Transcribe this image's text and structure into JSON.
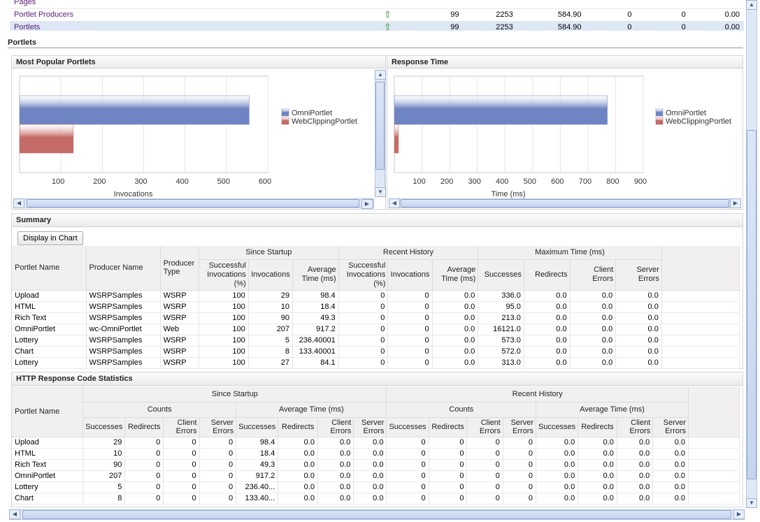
{
  "top_table": {
    "rows": [
      {
        "name": "Pages",
        "status": "",
        "c1": "",
        "c2": "",
        "c3": "",
        "c4": "",
        "c5": "",
        "c6": ""
      },
      {
        "name": "Portlet Producers",
        "status": "up-arrow-icon",
        "c1": "99",
        "c2": "2253",
        "c3": "584.90",
        "c4": "0",
        "c5": "0",
        "c6": "0.00"
      },
      {
        "name": "Portlets",
        "status": "up-arrow-icon",
        "c1": "99",
        "c2": "2253",
        "c3": "584.90",
        "c4": "0",
        "c5": "0",
        "c6": "0.00"
      }
    ]
  },
  "portlets_section": {
    "title": "Portlets"
  },
  "popular_chart": {
    "title": "Most Popular Portlets"
  },
  "response_chart": {
    "title": "Response Time"
  },
  "chart_data": [
    {
      "type": "bar",
      "orientation": "horizontal",
      "title": "Most Popular Portlets",
      "xlabel": "Invocations",
      "xlim": [
        0,
        600
      ],
      "xticks": [
        "100",
        "200",
        "300",
        "400",
        "500",
        "600"
      ],
      "series": [
        {
          "name": "OmniPortlet",
          "values": [
            555
          ],
          "color": "#6f84c2"
        },
        {
          "name": "WebClippingPortlet",
          "values": [
            130
          ],
          "color": "#c46b68"
        }
      ],
      "legend": "right"
    },
    {
      "type": "bar",
      "orientation": "horizontal",
      "title": "Response Time",
      "xlabel": "Time (ms)",
      "xlim": [
        0,
        900
      ],
      "xticks": [
        "100",
        "200",
        "300",
        "400",
        "500",
        "600",
        "700",
        "800",
        "900"
      ],
      "series": [
        {
          "name": "OmniPortlet",
          "values": [
            770
          ],
          "color": "#6f84c2"
        },
        {
          "name": "WebClippingPortlet",
          "values": [
            15
          ],
          "color": "#c46b68"
        }
      ],
      "legend": "right"
    }
  ],
  "summary": {
    "title": "Summary",
    "display_chart_button": "Display in Chart",
    "group_headers": {
      "since_startup": "Since Startup",
      "recent_history": "Recent History",
      "maximum_time": "Maximum Time (ms)"
    },
    "columns": {
      "portlet_name": "Portlet Name",
      "producer_name": "Producer Name",
      "producer_type": "Producer Type",
      "ss_success": "Successful Invocations (%)",
      "ss_invocations": "Invocations",
      "ss_avg": "Average Time (ms)",
      "rh_success": "Successful Invocations (%)",
      "rh_invocations": "Invocations",
      "rh_avg": "Average Time (ms)",
      "mt_successes": "Successes",
      "mt_redirects": "Redirects",
      "mt_client": "Client Errors",
      "mt_server": "Server Errors"
    },
    "rows": [
      [
        "Upload",
        "WSRPSamples",
        "WSRP",
        "100",
        "29",
        "98.4",
        "0",
        "0",
        "0.0",
        "336.0",
        "0.0",
        "0.0",
        "0.0"
      ],
      [
        "HTML",
        "WSRPSamples",
        "WSRP",
        "100",
        "10",
        "18.4",
        "0",
        "0",
        "0.0",
        "95.0",
        "0.0",
        "0.0",
        "0.0"
      ],
      [
        "Rich Text",
        "WSRPSamples",
        "WSRP",
        "100",
        "90",
        "49.3",
        "0",
        "0",
        "0.0",
        "213.0",
        "0.0",
        "0.0",
        "0.0"
      ],
      [
        "OmniPortlet",
        "wc-OmniPortlet",
        "Web",
        "100",
        "207",
        "917.2",
        "0",
        "0",
        "0.0",
        "16121.0",
        "0.0",
        "0.0",
        "0.0"
      ],
      [
        "Lottery",
        "WSRPSamples",
        "WSRP",
        "100",
        "5",
        "236.40001",
        "0",
        "0",
        "0.0",
        "573.0",
        "0.0",
        "0.0",
        "0.0"
      ],
      [
        "Chart",
        "WSRPSamples",
        "WSRP",
        "100",
        "8",
        "133.40001",
        "0",
        "0",
        "0.0",
        "572.0",
        "0.0",
        "0.0",
        "0.0"
      ],
      [
        "Lottery",
        "WSRPSamples",
        "WSRP",
        "100",
        "27",
        "84.1",
        "0",
        "0",
        "0.0",
        "313.0",
        "0.0",
        "0.0",
        "0.0"
      ]
    ]
  },
  "http": {
    "title": "HTTP Response Code Statistics",
    "group_headers": {
      "since_startup": "Since Startup",
      "recent_history": "Recent History",
      "counts": "Counts",
      "avg_time": "Average Time (ms)"
    },
    "columns": {
      "portlet_name": "Portlet Name",
      "successes": "Successes",
      "redirects": "Redirects",
      "client": "Client Errors",
      "server": "Server Errors"
    },
    "rows": [
      [
        "Upload",
        "29",
        "0",
        "0",
        "0",
        "98.4",
        "0.0",
        "0.0",
        "0.0",
        "0",
        "0",
        "0",
        "0",
        "0.0",
        "0.0",
        "0.0",
        "0.0"
      ],
      [
        "HTML",
        "10",
        "0",
        "0",
        "0",
        "18.4",
        "0.0",
        "0.0",
        "0.0",
        "0",
        "0",
        "0",
        "0",
        "0.0",
        "0.0",
        "0.0",
        "0.0"
      ],
      [
        "Rich Text",
        "90",
        "0",
        "0",
        "0",
        "49.3",
        "0.0",
        "0.0",
        "0.0",
        "0",
        "0",
        "0",
        "0",
        "0.0",
        "0.0",
        "0.0",
        "0.0"
      ],
      [
        "OmniPortlet",
        "207",
        "0",
        "0",
        "0",
        "917.2",
        "0.0",
        "0.0",
        "0.0",
        "0",
        "0",
        "0",
        "0",
        "0.0",
        "0.0",
        "0.0",
        "0.0"
      ],
      [
        "Lottery",
        "5",
        "0",
        "0",
        "0",
        "236.40...",
        "0.0",
        "0.0",
        "0.0",
        "0",
        "0",
        "0",
        "0",
        "0.0",
        "0.0",
        "0.0",
        "0.0"
      ],
      [
        "Chart",
        "8",
        "0",
        "0",
        "0",
        "133.40...",
        "0.0",
        "0.0",
        "0.0",
        "0",
        "0",
        "0",
        "0",
        "0.0",
        "0.0",
        "0.0",
        "0.0"
      ]
    ]
  }
}
